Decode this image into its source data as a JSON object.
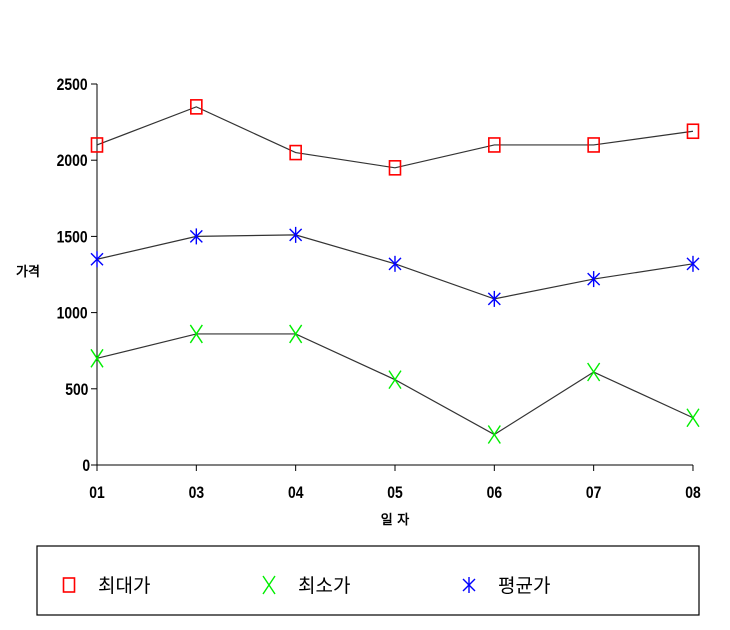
{
  "chart_data": {
    "type": "line",
    "categories": [
      "01",
      "03",
      "04",
      "05",
      "06",
      "07",
      "08"
    ],
    "xlabel": "일 자",
    "ylabel": "가격",
    "ylim": [
      0,
      2500
    ],
    "yticks": [
      0,
      500,
      1000,
      1500,
      2000,
      2500
    ],
    "grid": false,
    "legend_position": "bottom",
    "series": [
      {
        "name": "최대가",
        "marker": "square",
        "color": "#ff0000",
        "values": [
          2100,
          2350,
          2050,
          1950,
          2100,
          2100,
          2190
        ]
      },
      {
        "name": "최소가",
        "marker": "x",
        "color": "#00ee00",
        "values": [
          700,
          860,
          860,
          560,
          200,
          610,
          310
        ]
      },
      {
        "name": "평균가",
        "marker": "asterisk",
        "color": "#0000ff",
        "values": [
          1350,
          1500,
          1510,
          1320,
          1090,
          1220,
          1320
        ]
      }
    ]
  }
}
